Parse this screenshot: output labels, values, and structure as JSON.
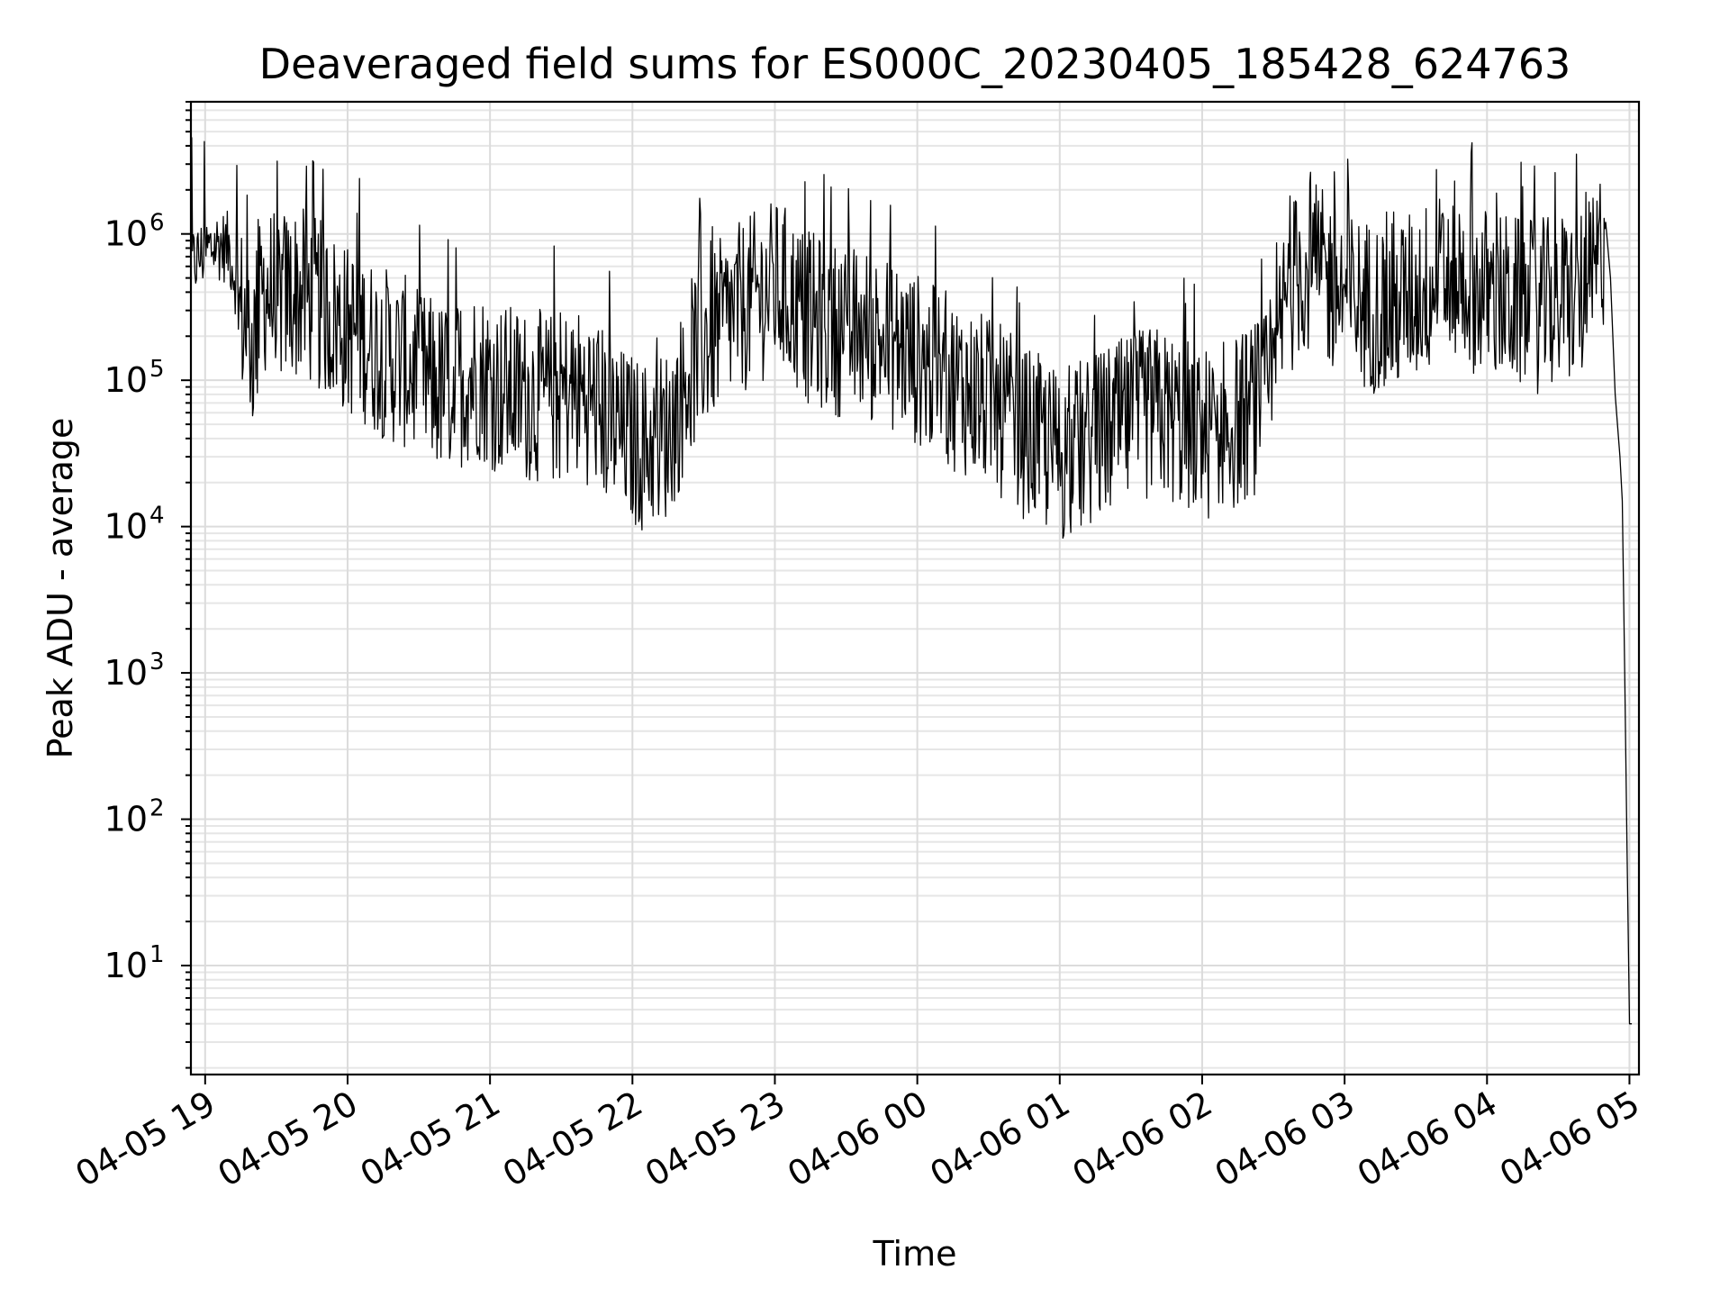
{
  "chart_data": {
    "type": "line",
    "title": "Deaveraged field sums for ES000C_20230405_185428_624763",
    "xlabel": "Time",
    "ylabel": "Peak ADU - average",
    "yscale": "log",
    "ylim": [
      1.8,
      8000000
    ],
    "xlim": [
      "04-05 18:54",
      "04-06 05:04"
    ],
    "grid": true,
    "x_ticks": [
      {
        "t": "04-05 19",
        "label": "04-05 19"
      },
      {
        "t": "04-05 20",
        "label": "04-05 20"
      },
      {
        "t": "04-05 21",
        "label": "04-05 21"
      },
      {
        "t": "04-05 22",
        "label": "04-05 22"
      },
      {
        "t": "04-05 23",
        "label": "04-05 23"
      },
      {
        "t": "04-06 00",
        "label": "04-06 00"
      },
      {
        "t": "04-06 01",
        "label": "04-06 01"
      },
      {
        "t": "04-06 02",
        "label": "04-06 02"
      },
      {
        "t": "04-06 03",
        "label": "04-06 03"
      },
      {
        "t": "04-06 04",
        "label": "04-06 04"
      },
      {
        "t": "04-06 05",
        "label": "04-06 05"
      }
    ],
    "y_ticks": [
      {
        "value": 10,
        "base": "10",
        "exp": "1"
      },
      {
        "value": 100,
        "base": "10",
        "exp": "2"
      },
      {
        "value": 1000,
        "base": "10",
        "exp": "3"
      },
      {
        "value": 10000,
        "base": "10",
        "exp": "4"
      },
      {
        "value": 100000,
        "base": "10",
        "exp": "5"
      },
      {
        "value": 1000000,
        "base": "10",
        "exp": "6"
      }
    ],
    "series": [
      {
        "color": "#000000",
        "points": [
          [
            "04-05 18:54",
            650000
          ],
          [
            "04-05 19:00",
            800000
          ],
          [
            "04-05 19:05",
            900000
          ],
          [
            "04-05 19:10",
            850000
          ],
          [
            "04-05 19:15",
            350000
          ],
          [
            "04-05 19:20",
            200000
          ],
          [
            "04-05 19:25",
            500000
          ],
          [
            "04-05 19:30",
            400000
          ],
          [
            "04-05 19:35",
            450000
          ],
          [
            "04-05 19:40",
            450000
          ],
          [
            "04-05 19:45",
            400000
          ],
          [
            "04-05 19:50",
            350000
          ],
          [
            "04-05 19:55",
            300000
          ],
          [
            "04-05 20:00",
            250000
          ],
          [
            "04-05 20:05",
            250000
          ],
          [
            "04-05 20:10",
            200000
          ],
          [
            "04-05 20:15",
            180000
          ],
          [
            "04-05 20:20",
            160000
          ],
          [
            "04-05 20:25",
            150000
          ],
          [
            "04-05 20:30",
            120000
          ],
          [
            "04-05 20:35",
            110000
          ],
          [
            "04-05 20:40",
            100000
          ],
          [
            "04-05 20:45",
            110000
          ],
          [
            "04-05 20:50",
            120000
          ],
          [
            "04-05 20:55",
            130000
          ],
          [
            "04-05 21:00",
            110000
          ],
          [
            "04-05 21:05",
            100000
          ],
          [
            "04-05 21:10",
            95000
          ],
          [
            "04-05 21:15",
            90000
          ],
          [
            "04-05 21:20",
            90000
          ],
          [
            "04-05 21:25",
            85000
          ],
          [
            "04-05 21:30",
            90000
          ],
          [
            "04-05 21:35",
            95000
          ],
          [
            "04-05 21:40",
            90000
          ],
          [
            "04-05 21:45",
            80000
          ],
          [
            "04-05 21:50",
            60000
          ],
          [
            "04-05 21:55",
            50000
          ],
          [
            "04-05 22:00",
            45000
          ],
          [
            "04-05 22:05",
            40000
          ],
          [
            "04-05 22:10",
            45000
          ],
          [
            "04-05 22:15",
            50000
          ],
          [
            "04-05 22:20",
            80000
          ],
          [
            "04-05 22:25",
            150000
          ],
          [
            "04-05 22:30",
            200000
          ],
          [
            "04-05 22:35",
            250000
          ],
          [
            "04-05 22:40",
            300000
          ],
          [
            "04-05 22:45",
            350000
          ],
          [
            "04-05 22:50",
            400000
          ],
          [
            "04-05 22:55",
            450000
          ],
          [
            "04-05 23:00",
            500000
          ],
          [
            "04-05 23:05",
            450000
          ],
          [
            "04-05 23:10",
            350000
          ],
          [
            "04-05 23:15",
            300000
          ],
          [
            "04-05 23:20",
            280000
          ],
          [
            "04-05 23:25",
            260000
          ],
          [
            "04-05 23:30",
            250000
          ],
          [
            "04-05 23:35",
            240000
          ],
          [
            "04-05 23:40",
            230000
          ],
          [
            "04-05 23:45",
            220000
          ],
          [
            "04-05 23:50",
            200000
          ],
          [
            "04-05 23:55",
            180000
          ],
          [
            "04-06 00:00",
            160000
          ],
          [
            "04-06 00:05",
            140000
          ],
          [
            "04-06 00:10",
            120000
          ],
          [
            "04-06 00:15",
            110000
          ],
          [
            "04-06 00:20",
            100000
          ],
          [
            "04-06 00:25",
            90000
          ],
          [
            "04-06 00:30",
            80000
          ],
          [
            "04-06 00:35",
            70000
          ],
          [
            "04-06 00:40",
            60000
          ],
          [
            "04-06 00:45",
            50000
          ],
          [
            "04-06 00:50",
            45000
          ],
          [
            "04-06 00:55",
            40000
          ],
          [
            "04-06 01:00",
            35000
          ],
          [
            "04-06 01:05",
            35000
          ],
          [
            "04-06 01:10",
            40000
          ],
          [
            "04-06 01:15",
            45000
          ],
          [
            "04-06 01:20",
            50000
          ],
          [
            "04-06 01:25",
            55000
          ],
          [
            "04-06 01:30",
            60000
          ],
          [
            "04-06 01:35",
            65000
          ],
          [
            "04-06 01:40",
            70000
          ],
          [
            "04-06 01:45",
            65000
          ],
          [
            "04-06 01:50",
            60000
          ],
          [
            "04-06 01:55",
            55000
          ],
          [
            "04-06 02:00",
            50000
          ],
          [
            "04-06 02:05",
            50000
          ],
          [
            "04-06 02:10",
            55000
          ],
          [
            "04-06 02:15",
            60000
          ],
          [
            "04-06 02:20",
            70000
          ],
          [
            "04-06 02:25",
            80000
          ],
          [
            "04-06 02:30",
            100000
          ],
          [
            "04-06 02:35",
            400000
          ],
          [
            "04-06 02:40",
            600000
          ],
          [
            "04-06 02:45",
            700000
          ],
          [
            "04-06 02:50",
            600000
          ],
          [
            "04-06 02:55",
            500000
          ],
          [
            "04-06 03:00",
            450000
          ],
          [
            "04-06 03:05",
            400000
          ],
          [
            "04-06 03:10",
            380000
          ],
          [
            "04-06 03:15",
            360000
          ],
          [
            "04-06 03:20",
            350000
          ],
          [
            "04-06 03:25",
            400000
          ],
          [
            "04-06 03:30",
            450000
          ],
          [
            "04-06 03:35",
            500000
          ],
          [
            "04-06 03:40",
            550000
          ],
          [
            "04-06 03:45",
            600000
          ],
          [
            "04-06 03:50",
            550000
          ],
          [
            "04-06 03:55",
            500000
          ],
          [
            "04-06 04:00",
            450000
          ],
          [
            "04-06 04:05",
            420000
          ],
          [
            "04-06 04:10",
            400000
          ],
          [
            "04-06 04:15",
            380000
          ],
          [
            "04-06 04:20",
            360000
          ],
          [
            "04-06 04:25",
            380000
          ],
          [
            "04-06 04:30",
            400000
          ],
          [
            "04-06 04:35",
            420000
          ],
          [
            "04-06 04:40",
            450000
          ],
          [
            "04-06 04:45",
            550000
          ],
          [
            "04-06 04:50",
            1200000
          ],
          [
            "04-06 04:52",
            500000
          ],
          [
            "04-06 04:54",
            80000
          ],
          [
            "04-06 04:56",
            30000
          ],
          [
            "04-06 04:57",
            15000
          ],
          [
            "04-06 04:58",
            1000
          ],
          [
            "04-06 04:59",
            60
          ],
          [
            "04-06 05:00",
            4
          ],
          [
            "04-06 05:01",
            4
          ]
        ]
      }
    ]
  }
}
